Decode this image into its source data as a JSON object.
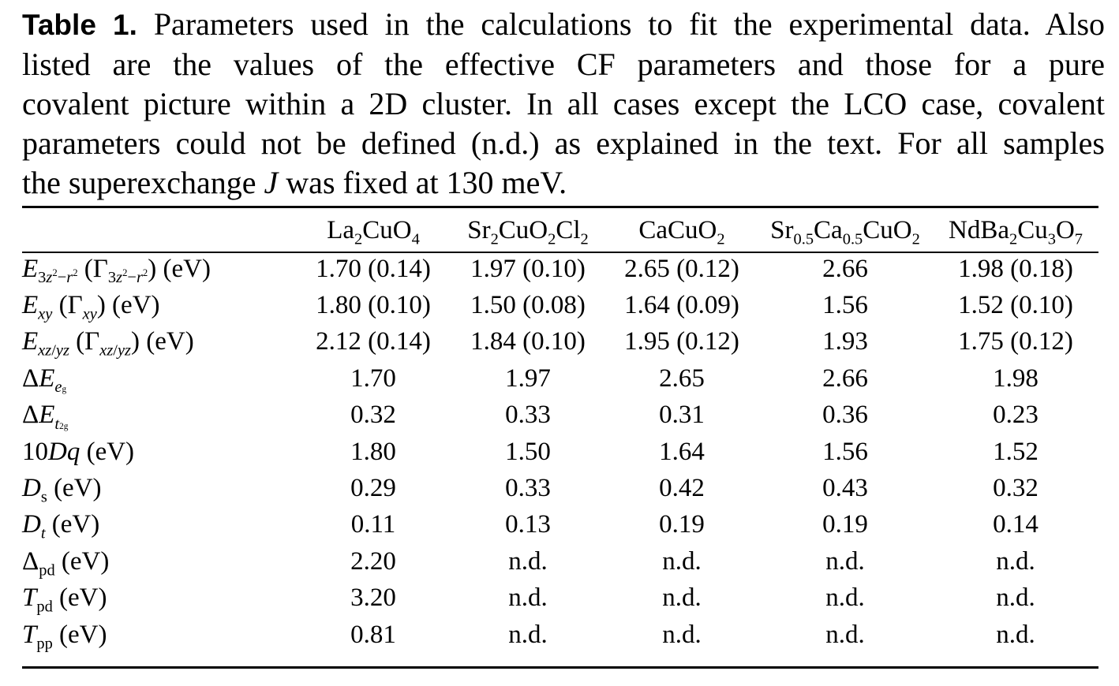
{
  "caption": {
    "label": "Table 1.",
    "line1": "Parameters used in the calculations to fit the experimental data. Also",
    "line2": "listed are the values of the effective CF parameters and those for a pure",
    "line3": "covalent picture within a 2D cluster. In all cases except the LCO case, covalent",
    "line4": "parameters could not be defined (n.d.) as explained in the text. For all samples",
    "line5a": "the superexchange",
    "line5b": "J",
    "line5c": "was fixed at 130 meV."
  },
  "table": {
    "columns": [
      "La2CuO4",
      "Sr2CuO2Cl2",
      "CaCuO2",
      "Sr0.5Ca0.5CuO2",
      "NdBa2Cu3O7"
    ],
    "rows": [
      {
        "label": "E3z2−r2 (Γ3z2−r2) (eV)",
        "values": [
          "1.70 (0.14)",
          "1.97 (0.10)",
          "2.65 (0.12)",
          "2.66",
          "1.98 (0.18)"
        ]
      },
      {
        "label": "Exy (Γxy) (eV)",
        "values": [
          "1.80 (0.10)",
          "1.50 (0.08)",
          "1.64 (0.09)",
          "1.56",
          "1.52 (0.10)"
        ]
      },
      {
        "label": "Exz/yz (Γxz/yz) (eV)",
        "values": [
          "2.12 (0.14)",
          "1.84 (0.10)",
          "1.95 (0.12)",
          "1.93",
          "1.75 (0.12)"
        ]
      },
      {
        "label": "ΔEeg",
        "values": [
          "1.70",
          "1.97",
          "2.65",
          "2.66",
          "1.98"
        ]
      },
      {
        "label": "ΔEt2g",
        "values": [
          "0.32",
          "0.33",
          "0.31",
          "0.36",
          "0.23"
        ]
      },
      {
        "label": "10Dq (eV)",
        "values": [
          "1.80",
          "1.50",
          "1.64",
          "1.56",
          "1.52"
        ]
      },
      {
        "label": "Ds (eV)",
        "values": [
          "0.29",
          "0.33",
          "0.42",
          "0.43",
          "0.32"
        ]
      },
      {
        "label": "Dt (eV)",
        "values": [
          "0.11",
          "0.13",
          "0.19",
          "0.19",
          "0.14"
        ]
      },
      {
        "label": "Δpd (eV)",
        "values": [
          "2.20",
          "n.d.",
          "n.d.",
          "n.d.",
          "n.d."
        ]
      },
      {
        "label": "Tpd (eV)",
        "values": [
          "3.20",
          "n.d.",
          "n.d.",
          "n.d.",
          "n.d."
        ]
      },
      {
        "label": "Tpp (eV)",
        "values": [
          "0.81",
          "n.d.",
          "n.d.",
          "n.d.",
          "n.d."
        ]
      }
    ]
  }
}
